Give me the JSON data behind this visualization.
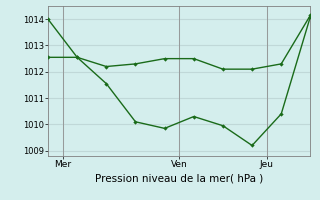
{
  "xlabel": "Pression niveau de la mer( hPa )",
  "background_color": "#d4eeed",
  "grid_color": "#c0d8d8",
  "line_color": "#1a6b1a",
  "line1_x": [
    0,
    1,
    2,
    3,
    4,
    5,
    6,
    7,
    8,
    9
  ],
  "line1_y": [
    1014.0,
    1012.55,
    1011.55,
    1010.1,
    1009.85,
    1010.3,
    1009.95,
    1009.2,
    1010.4,
    1014.1
  ],
  "line2_x": [
    0,
    1,
    2,
    3,
    4,
    5,
    6,
    7,
    8,
    9
  ],
  "line2_y": [
    1012.55,
    1012.55,
    1012.2,
    1012.3,
    1012.5,
    1012.5,
    1012.1,
    1012.1,
    1012.3,
    1014.15
  ],
  "ylim": [
    1008.8,
    1014.5
  ],
  "yticks": [
    1009,
    1010,
    1011,
    1012,
    1013,
    1014
  ],
  "xlim": [
    0,
    9
  ],
  "xtick_positions": [
    0.5,
    4.5,
    7.5
  ],
  "xtick_labels": [
    "Mer",
    "Ven",
    "Jeu"
  ],
  "vline_positions": [
    0.5,
    4.5,
    7.5
  ]
}
